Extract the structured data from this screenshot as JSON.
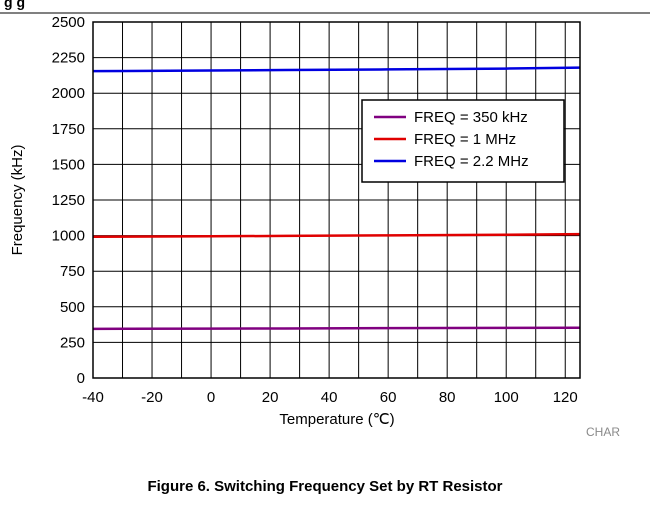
{
  "header_fragment": "g              g",
  "caption": "Figure 6. Switching Frequency Set by RT Resistor",
  "chart_data": {
    "type": "line",
    "xlabel": "Temperature (℃)",
    "ylabel": "Frequency (kHz)",
    "xlim": [
      -40,
      125
    ],
    "ylim": [
      0,
      2500
    ],
    "xticks": [
      -40,
      -20,
      0,
      20,
      40,
      60,
      80,
      100,
      120
    ],
    "yticks": [
      0,
      250,
      500,
      750,
      1000,
      1250,
      1500,
      1750,
      2000,
      2250,
      2500
    ],
    "grid": true,
    "legend_position": "top-right",
    "watermark": "CHAR",
    "series": [
      {
        "name": "FREQ = 350 kHz",
        "color": "#800080",
        "x": [
          -40,
          0,
          25,
          60,
          100,
          125
        ],
        "y": [
          345,
          347,
          348,
          350,
          352,
          353
        ]
      },
      {
        "name": "FREQ = 1 MHz",
        "color": "#e00000",
        "x": [
          -40,
          0,
          25,
          60,
          100,
          125
        ],
        "y": [
          992,
          995,
          998,
          1002,
          1006,
          1010
        ]
      },
      {
        "name": "FREQ = 2.2 MHz",
        "color": "#0000e0",
        "x": [
          -40,
          0,
          25,
          60,
          100,
          125
        ],
        "y": [
          2155,
          2159,
          2163,
          2167,
          2173,
          2180
        ]
      }
    ]
  }
}
